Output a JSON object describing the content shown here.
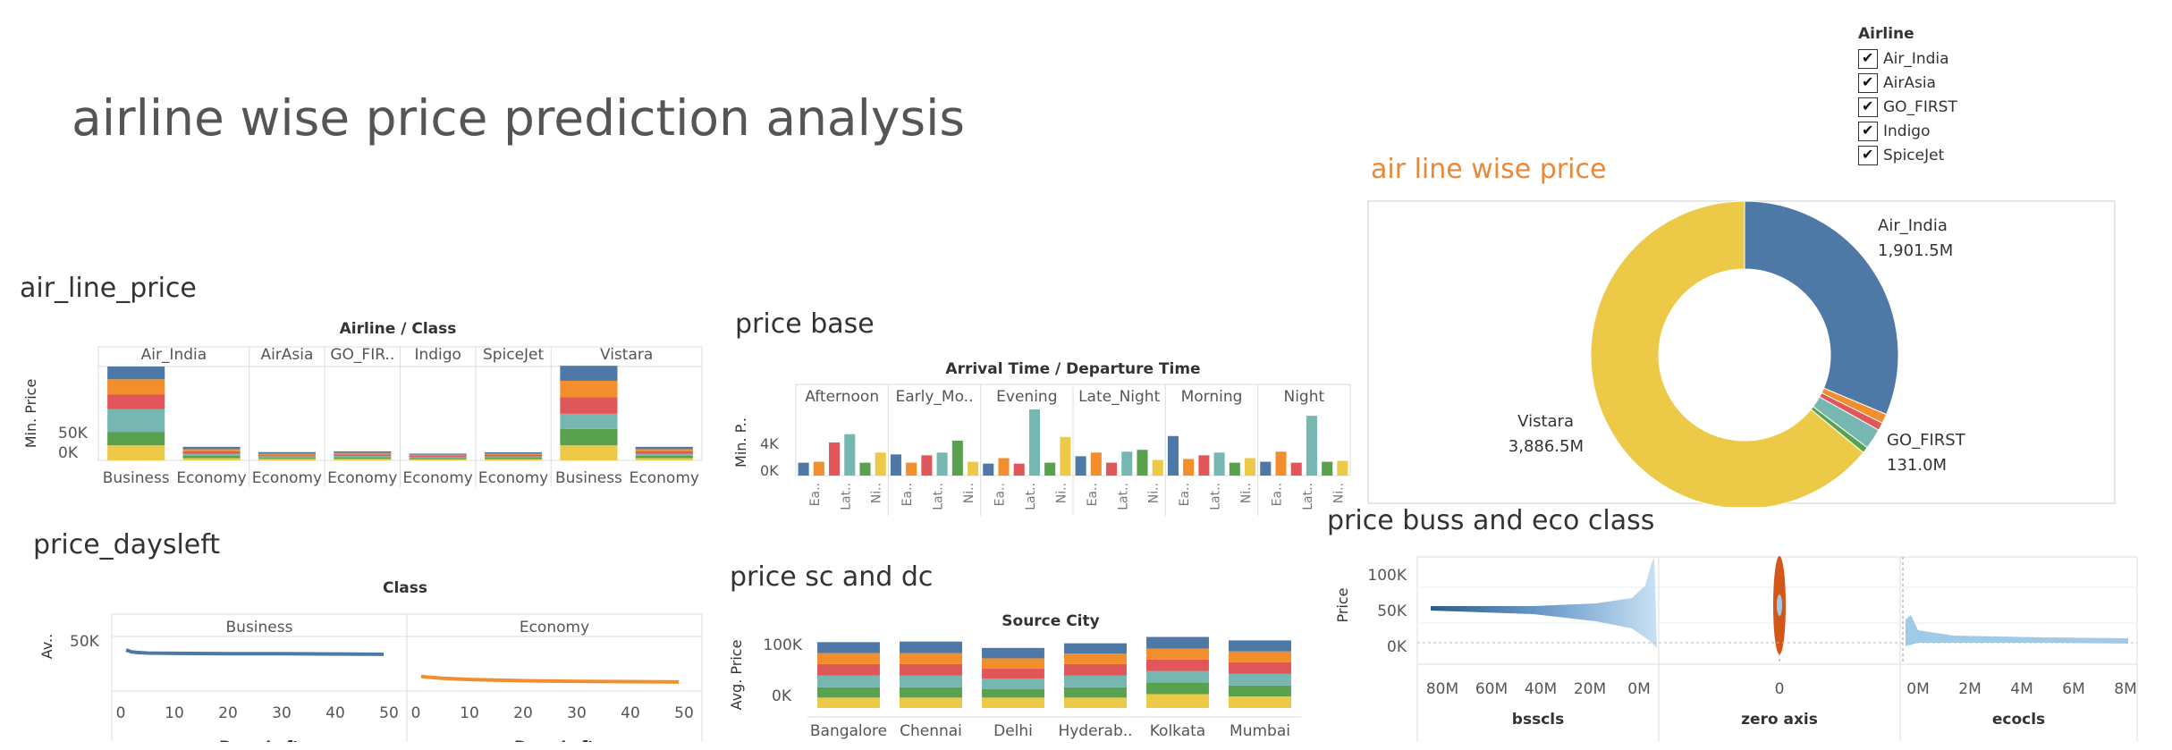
{
  "dashboard_title": "airline wise price prediction analysis",
  "legend": {
    "title": "Airline",
    "items": [
      "Air_India",
      "AirAsia",
      "GO_FIRST",
      "Indigo",
      "SpiceJet"
    ]
  },
  "colors": {
    "blue": "#4e79a7",
    "orange": "#f28e2b",
    "red": "#e15759",
    "teal": "#76b7b2",
    "green": "#59a14f",
    "yellow": "#edc948",
    "light_blue": "#a0cbe8",
    "dark_orange": "#d4571a"
  },
  "sheets": {
    "air_line_price": "air_line_price",
    "price_base": "price base",
    "air_line_wise_price": "air line wise price",
    "price_daysleft": "price_daysleft",
    "price_sc_dc": "price sc and dc",
    "price_buss_eco": "price buss and eco class"
  },
  "chart_data": [
    {
      "id": "air_line_price",
      "type": "bar",
      "stacked": true,
      "header": "Airline / Class",
      "ylabel": "Min. Price",
      "yticks": [
        "0K",
        "50K"
      ],
      "ylim": [
        0,
        125000
      ],
      "airlines": [
        "Air_India",
        "AirAsia",
        "GO_FIR..",
        "Indigo",
        "SpiceJet",
        "Vistara"
      ],
      "columns": [
        {
          "airline": "Air_India",
          "class": "Business",
          "segments": [
            20000,
            18000,
            30000,
            20000,
            20000,
            17000
          ]
        },
        {
          "airline": "Air_India",
          "class": "Economy",
          "segments": [
            3000,
            3000,
            3000,
            3000,
            3000,
            3000
          ]
        },
        {
          "airline": "AirAsia",
          "class": "Economy",
          "segments": [
            2000,
            1500,
            2000,
            1500,
            2000,
            2000
          ]
        },
        {
          "airline": "GO_FIR..",
          "class": "Economy",
          "segments": [
            2000,
            2000,
            2000,
            2000,
            2000,
            2000
          ]
        },
        {
          "airline": "Indigo",
          "class": "Economy",
          "segments": [
            1500,
            1500,
            1500,
            1500,
            1500,
            1500
          ]
        },
        {
          "airline": "SpiceJet",
          "class": "Economy",
          "segments": [
            1800,
            1800,
            1800,
            1800,
            1800,
            1800
          ]
        },
        {
          "airline": "Vistara",
          "class": "Business",
          "segments": [
            20000,
            22000,
            20000,
            22000,
            22000,
            20000
          ]
        },
        {
          "airline": "Vistara",
          "class": "Economy",
          "segments": [
            3000,
            3000,
            3000,
            3000,
            3000,
            3000
          ]
        }
      ],
      "segment_order": [
        "yellow",
        "green",
        "teal",
        "red",
        "orange",
        "blue"
      ]
    },
    {
      "id": "price_base",
      "type": "bar",
      "header": "Arrival Time / Departure Time",
      "ylabel": "Min. P..",
      "yticks": [
        "0K",
        "4K"
      ],
      "ylim": [
        0,
        7000
      ],
      "groups": [
        "Afternoon",
        "Early_Mo..",
        "Evening",
        "Late_Night",
        "Morning",
        "Night"
      ],
      "bar_colors": [
        "blue",
        "orange",
        "red",
        "teal",
        "green",
        "yellow"
      ],
      "group_values": [
        [
          1400,
          1500,
          3600,
          4500,
          1400,
          2500
        ],
        [
          2300,
          1400,
          2200,
          2500,
          3800,
          1500
        ],
        [
          1300,
          1900,
          1300,
          7200,
          1400,
          4200
        ],
        [
          2100,
          2500,
          1400,
          2600,
          2800,
          1700
        ],
        [
          4300,
          1800,
          2200,
          2500,
          1400,
          1900
        ],
        [
          1500,
          2600,
          1400,
          6500,
          1500,
          1600
        ]
      ],
      "sublabels": [
        "Ea..",
        "Lat..",
        "Ni.."
      ]
    },
    {
      "id": "air_line_wise_price",
      "type": "pie",
      "donut": true,
      "slices": [
        {
          "label": "Air_India",
          "value": 1901.5,
          "display": "1,901.5M",
          "color": "blue"
        },
        {
          "label": "AirAsia",
          "value": 60,
          "display": "",
          "color": "orange"
        },
        {
          "label": "Indigo",
          "value": 50,
          "display": "",
          "color": "red"
        },
        {
          "label": "GO_FIRST",
          "value": 131.0,
          "display": "131.0M",
          "color": "teal"
        },
        {
          "label": "SpiceJet",
          "value": 40,
          "display": "",
          "color": "green"
        },
        {
          "label": "Vistara",
          "value": 3886.5,
          "display": "3,886.5M",
          "color": "yellow"
        }
      ]
    },
    {
      "id": "price_daysleft",
      "type": "line",
      "header": "Class",
      "ylabel": "Av..",
      "ytick": "50K",
      "xlabel": "Days Left",
      "xticks": [
        0,
        10,
        20,
        30,
        40,
        50
      ],
      "panels": [
        {
          "class": "Business",
          "color": "blue",
          "x": [
            1,
            2,
            3,
            5,
            10,
            20,
            30,
            40,
            49
          ],
          "y": [
            58000,
            55000,
            54000,
            53000,
            52500,
            52000,
            52000,
            51500,
            51000
          ]
        },
        {
          "class": "Economy",
          "color": "orange",
          "x": [
            1,
            2,
            5,
            10,
            20,
            30,
            40,
            49
          ],
          "y": [
            15000,
            14000,
            12000,
            10000,
            8000,
            7000,
            6500,
            6000
          ]
        }
      ],
      "ylim": [
        0,
        80000
      ]
    },
    {
      "id": "price_sc_dc",
      "type": "bar",
      "stacked": true,
      "header": "Source City",
      "ylabel": "Avg. Price",
      "yticks": [
        "0K",
        "100K"
      ],
      "ylim": [
        0,
        130000
      ],
      "categories": [
        "Bangalore",
        "Chennai",
        "Delhi",
        "Hyderab..",
        "Kolkata",
        "Mumbai"
      ],
      "segment_order": [
        "yellow",
        "green",
        "teal",
        "red",
        "orange",
        "blue"
      ],
      "segments": [
        [
          18000,
          18000,
          18000,
          18000,
          24000,
          20000
        ],
        [
          18000,
          18000,
          15000,
          18000,
          20000,
          19000
        ],
        [
          20000,
          20000,
          18000,
          20000,
          20000,
          20000
        ],
        [
          20000,
          20000,
          17000,
          20000,
          20000,
          20000
        ],
        [
          19000,
          19000,
          18000,
          18000,
          19000,
          19000
        ],
        [
          19000,
          20000,
          18000,
          18000,
          20000,
          19000
        ]
      ]
    },
    {
      "id": "price_buss_eco",
      "type": "area",
      "ylabel": "Price",
      "yticks": [
        "0K",
        "50K",
        "100K"
      ],
      "panels": [
        {
          "title": "bsscls",
          "xticks": [
            "80M",
            "60M",
            "40M",
            "20M",
            "0M"
          ]
        },
        {
          "title": "zero axis",
          "xticks": [
            "0"
          ]
        },
        {
          "title": "ecocls",
          "xticks": [
            "0M",
            "2M",
            "4M",
            "6M",
            "8M"
          ]
        }
      ]
    }
  ]
}
